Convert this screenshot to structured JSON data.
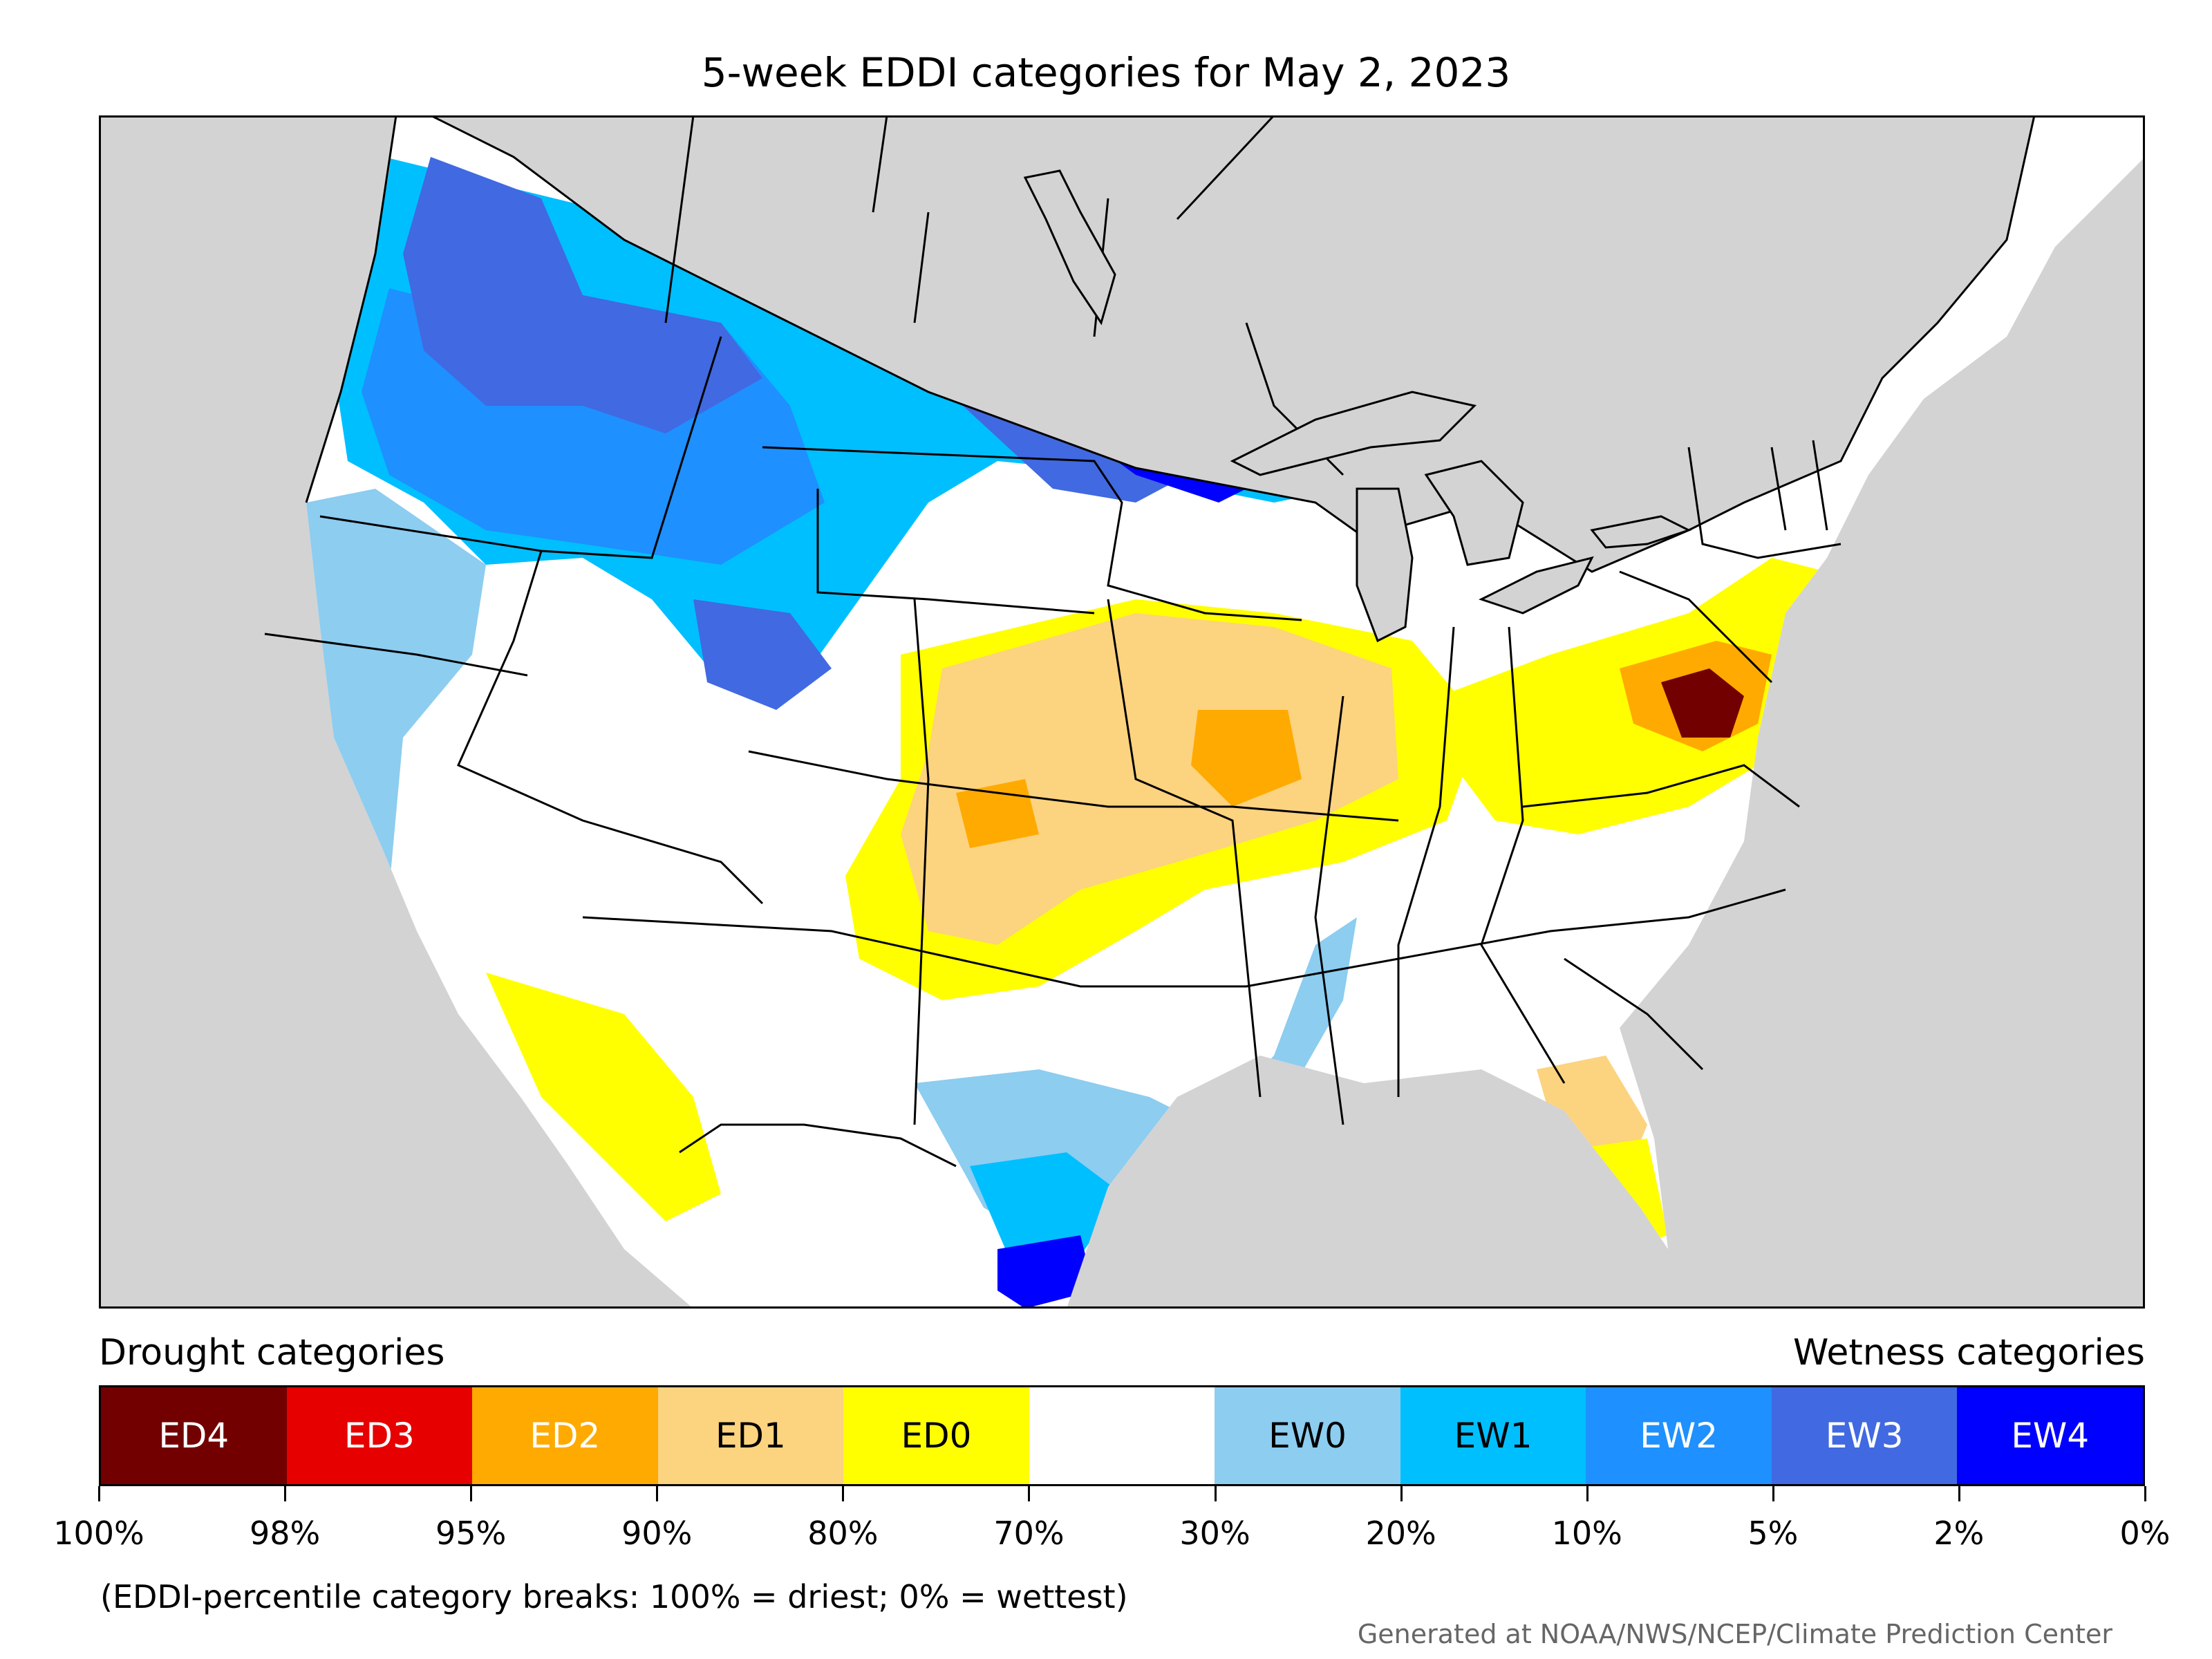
{
  "title": "5-week EDDI categories for May 2, 2023",
  "map": {
    "ocean_color": "#d3d3d3",
    "land_color": "#ffffff",
    "border_color": "#000000"
  },
  "legend": {
    "drought_heading": "Drought categories",
    "wetness_heading": "Wetness categories",
    "categories": [
      {
        "label": "ED4",
        "color": "#730000",
        "text_color": "#ffffff"
      },
      {
        "label": "ED3",
        "color": "#e60000",
        "text_color": "#ffffff"
      },
      {
        "label": "ED2",
        "color": "#ffaa00",
        "text_color": "#ffffff"
      },
      {
        "label": "ED1",
        "color": "#fcd37f",
        "text_color": "#000000"
      },
      {
        "label": "ED0",
        "color": "#ffff00",
        "text_color": "#000000"
      },
      {
        "label": "",
        "color": "#ffffff",
        "text_color": "#000000"
      },
      {
        "label": "EW0",
        "color": "#8ccdf0",
        "text_color": "#000000"
      },
      {
        "label": "EW1",
        "color": "#00bfff",
        "text_color": "#000000"
      },
      {
        "label": "EW2",
        "color": "#1e90ff",
        "text_color": "#ffffff"
      },
      {
        "label": "EW3",
        "color": "#4169e1",
        "text_color": "#ffffff"
      },
      {
        "label": "EW4",
        "color": "#0000ff",
        "text_color": "#ffffff"
      }
    ],
    "ticks": [
      "100%",
      "98%",
      "95%",
      "90%",
      "80%",
      "70%",
      "30%",
      "20%",
      "10%",
      "5%",
      "2%",
      "0%"
    ]
  },
  "note": "(EDDI-percentile category breaks: 100% = driest; 0% = wettest)",
  "credit": "Generated at NOAA/NWS/NCEP/Climate Prediction Center"
}
